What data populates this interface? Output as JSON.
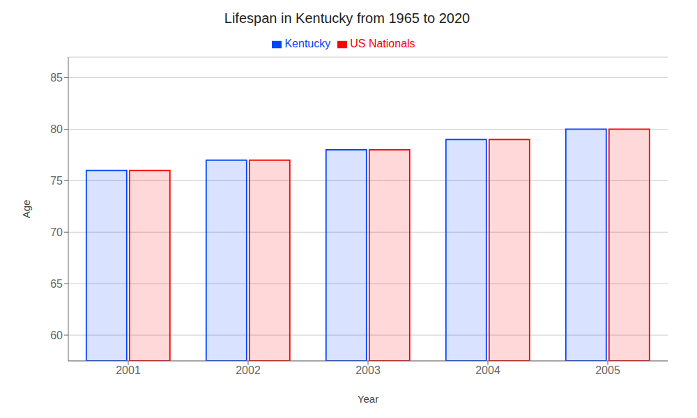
{
  "chart_data": {
    "type": "bar",
    "title": "Lifespan in Kentucky from 1965 to 2020",
    "x_label": "Year",
    "y_label": "Age",
    "categories": [
      "2001",
      "2002",
      "2003",
      "2004",
      "2005"
    ],
    "series": [
      {
        "name": "Kentucky",
        "color": "#0044ff",
        "values": [
          76,
          77,
          78,
          79,
          80
        ]
      },
      {
        "name": "US Nationals",
        "color": "#ff0000",
        "values": [
          76,
          77,
          78,
          79,
          80
        ]
      }
    ],
    "ylim": [
      57.5,
      87
    ],
    "yticks": [
      60,
      65,
      70,
      75,
      80,
      85
    ],
    "grid": true,
    "legend": "top"
  }
}
